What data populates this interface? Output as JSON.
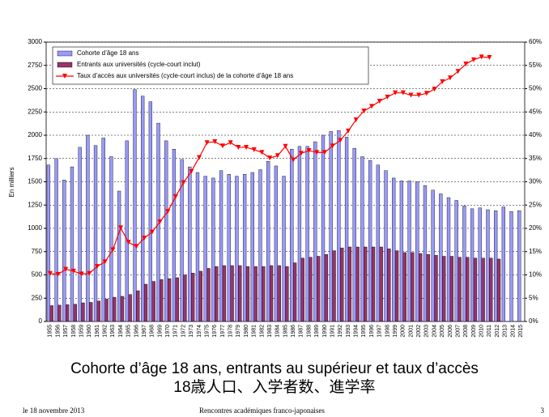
{
  "chart_data": {
    "type": "bar",
    "ylabel": "En milliers",
    "categories": [
      "1955",
      "1956",
      "1957",
      "1958",
      "1959",
      "1960",
      "1961",
      "1962",
      "1963",
      "1964",
      "1965",
      "1966",
      "1967",
      "1968",
      "1969",
      "1970",
      "1971",
      "1972",
      "1973",
      "1974",
      "1975",
      "1976",
      "1977",
      "1978",
      "1979",
      "1980",
      "1981",
      "1982",
      "1983",
      "1984",
      "1985",
      "1986",
      "1987",
      "1988",
      "1989",
      "1990",
      "1991",
      "1992",
      "1993",
      "1994",
      "1995",
      "1996",
      "1997",
      "1998",
      "1999",
      "2000",
      "2001",
      "2002",
      "2003",
      "2004",
      "2005",
      "2006",
      "2007",
      "2008",
      "2009",
      "2010",
      "2011",
      "2012",
      "2013",
      "2014",
      "2015"
    ],
    "series": [
      {
        "name": "Cohorte d’âge 18 ans",
        "color": "#9999ff",
        "type": "bar",
        "values": [
          1680,
          1750,
          1520,
          1660,
          1870,
          2000,
          1890,
          1970,
          1770,
          1400,
          1940,
          2490,
          2420,
          2360,
          2130,
          1940,
          1850,
          1740,
          1660,
          1600,
          1560,
          1540,
          1620,
          1580,
          1560,
          1580,
          1600,
          1630,
          1720,
          1670,
          1560,
          1850,
          1880,
          1880,
          1930,
          2000,
          2040,
          2050,
          1980,
          1860,
          1770,
          1730,
          1680,
          1620,
          1540,
          1510,
          1510,
          1500,
          1460,
          1410,
          1370,
          1330,
          1300,
          1240,
          1210,
          1220,
          1200,
          1190,
          1230,
          1180,
          1190
        ]
      },
      {
        "name": "Entrants aux universités (cycle-court inclut)",
        "color": "#993366",
        "type": "bar",
        "values": [
          170,
          175,
          180,
          185,
          200,
          205,
          220,
          240,
          260,
          270,
          290,
          330,
          400,
          430,
          450,
          460,
          470,
          500,
          520,
          540,
          570,
          590,
          600,
          600,
          600,
          590,
          590,
          590,
          600,
          600,
          590,
          630,
          680,
          690,
          700,
          720,
          760,
          790,
          800,
          800,
          800,
          800,
          800,
          780,
          760,
          740,
          740,
          730,
          720,
          710,
          700,
          700,
          690,
          690,
          680,
          680,
          680,
          670,
          null,
          null,
          null
        ]
      },
      {
        "name": "Taux d’accès aux universités (cycle-court inclus) de la cohorte d’âge 18 ans",
        "color": "#ff0000",
        "type": "line",
        "axis": "y2",
        "values": [
          10.3,
          10.1,
          11.2,
          10.8,
          10.2,
          10.3,
          11.8,
          12.8,
          15.4,
          20.1,
          17.0,
          16.1,
          17.9,
          19.2,
          21.4,
          23.6,
          26.8,
          29.8,
          32.2,
          35.2,
          38.4,
          38.6,
          37.7,
          38.4,
          37.4,
          37.4,
          36.9,
          36.3,
          35.1,
          35.6,
          37.6,
          34.7,
          36.1,
          36.7,
          36.3,
          36.3,
          37.7,
          38.9,
          40.9,
          43.3,
          45.2,
          46.2,
          47.3,
          48.2,
          49.1,
          49.1,
          48.6,
          48.6,
          49.0,
          49.9,
          51.5,
          52.3,
          53.7,
          55.3,
          56.2,
          56.8,
          56.7,
          null,
          null,
          null,
          null
        ]
      }
    ],
    "ylim": [
      0,
      3000
    ],
    "yticks": [
      0,
      250,
      500,
      750,
      1000,
      1250,
      1500,
      1750,
      2000,
      2250,
      2500,
      2750,
      3000
    ],
    "y2lim": [
      0,
      60
    ],
    "y2ticks": [
      {
        "value": 0,
        "label": "0%"
      },
      {
        "value": 5,
        "label": "5%"
      },
      {
        "value": 10,
        "label": "10%"
      },
      {
        "value": 15,
        "label": "15%"
      },
      {
        "value": 20,
        "label": "20%"
      },
      {
        "value": 25,
        "label": "25%"
      },
      {
        "value": 30,
        "label": "30%"
      },
      {
        "value": 35,
        "label": "35%"
      },
      {
        "value": 40,
        "label": "40%"
      },
      {
        "value": 45,
        "label": "45%"
      },
      {
        "value": 50,
        "label": "50%"
      },
      {
        "value": 55,
        "label": "55%"
      },
      {
        "value": 60,
        "label": "60%"
      }
    ],
    "grid": true,
    "legend": "top-left"
  },
  "caption": {
    "line1": "Cohorte d’âge 18 ans, entrants au supérieur et taux d’accès",
    "line2": "18歳人口、入学者数、進学率"
  },
  "footer": {
    "date": "le 18 novembre 2013",
    "event": "Rencontres académiques franco-japonaises",
    "page": "3"
  }
}
